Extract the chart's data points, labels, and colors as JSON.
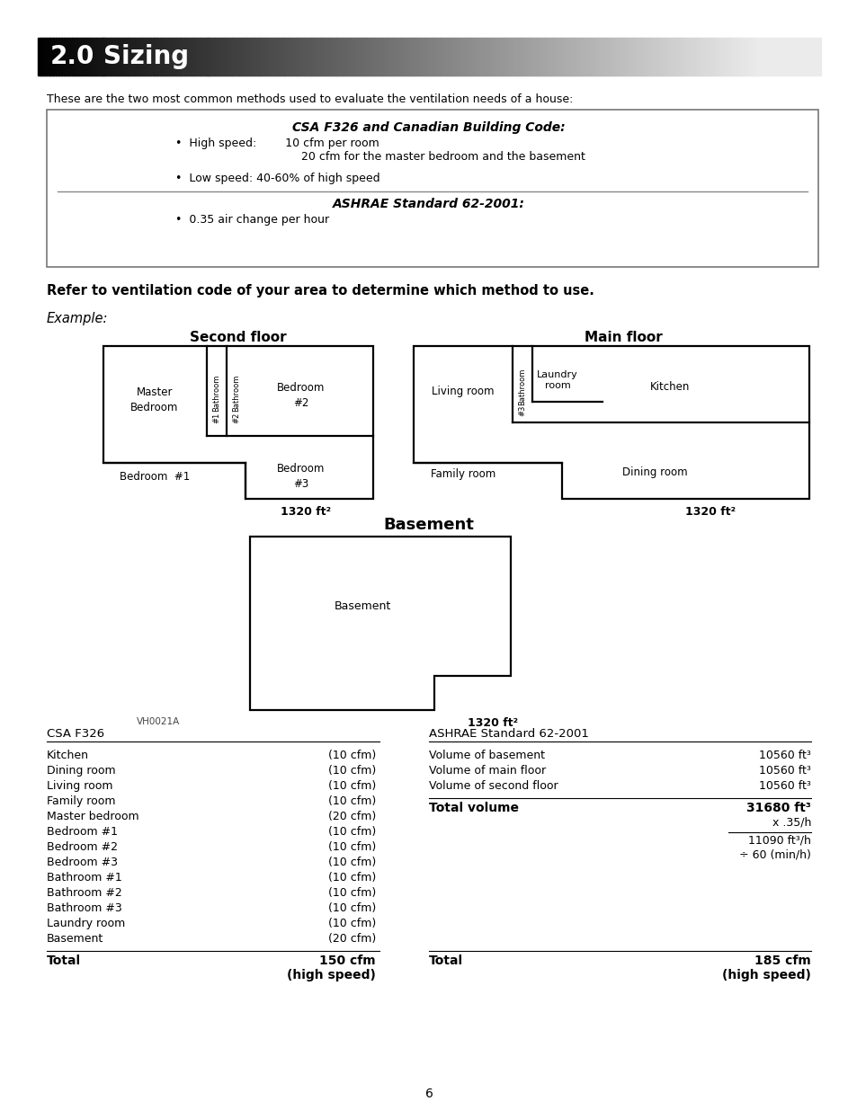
{
  "title_number": "2.0",
  "title_text": "Sizing",
  "intro_text": "These are the two most common methods used to evaluate the ventilation needs of a house:",
  "box_title1": "CSA F326 and Canadian Building Code:",
  "box_bullet1a": "•  High speed:        10 cfm per room",
  "box_bullet1b": "                                   20 cfm for the master bedroom and the basement",
  "box_bullet2": "•  Low speed: 40-60% of high speed",
  "box_title2": "ASHRAE Standard 62-2001:",
  "box_bullet3": "•  0.35 air change per hour",
  "refer_text": "Refer to ventilation code of your area to determine which method to use.",
  "example_text": "Example:",
  "second_floor_label": "Second floor",
  "main_floor_label": "Main floor",
  "basement_label": "Basement",
  "area_label": "1320 ft²",
  "vh_label": "VH0021A",
  "page_number": "6",
  "csa_title": "CSA F326",
  "ashrae_title": "ASHRAE Standard 62-2001",
  "csa_items": [
    [
      "Kitchen",
      "(10 cfm)"
    ],
    [
      "Dining room",
      "(10 cfm)"
    ],
    [
      "Living room",
      "(10 cfm)"
    ],
    [
      "Family room",
      "(10 cfm)"
    ],
    [
      "Master bedroom",
      "(20 cfm)"
    ],
    [
      "Bedroom #1",
      "(10 cfm)"
    ],
    [
      "Bedroom #2",
      "(10 cfm)"
    ],
    [
      "Bedroom #3",
      "(10 cfm)"
    ],
    [
      "Bathroom #1",
      "(10 cfm)"
    ],
    [
      "Bathroom #2",
      "(10 cfm)"
    ],
    [
      "Bathroom #3",
      "(10 cfm)"
    ],
    [
      "Laundry room",
      "(10 cfm)"
    ],
    [
      "Basement",
      "(20 cfm)"
    ]
  ],
  "csa_total_label": "Total",
  "csa_total_val1": "150 cfm",
  "csa_total_val2": "(high speed)",
  "ashrae_items": [
    [
      "Volume of basement",
      "10560 ft³"
    ],
    [
      "Volume of main floor",
      "10560 ft³"
    ],
    [
      "Volume of second floor",
      "10560 ft³"
    ]
  ],
  "ashrae_total_label": "Total volume",
  "ashrae_total_val": "31680 ft³",
  "ashrae_mult": "x .35/h",
  "ashrae_result1": "11090 ft³/h",
  "ashrae_result2": "÷ 60 (min/h)",
  "ashrae_final_label": "Total",
  "ashrae_final_val1": "185 cfm",
  "ashrae_final_val2": "(high speed)"
}
